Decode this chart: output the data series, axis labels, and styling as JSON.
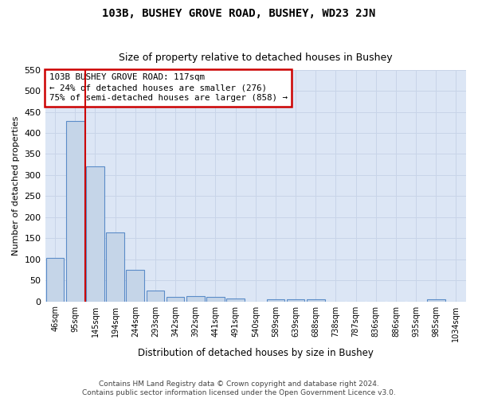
{
  "title": "103B, BUSHEY GROVE ROAD, BUSHEY, WD23 2JN",
  "subtitle": "Size of property relative to detached houses in Bushey",
  "xlabel": "Distribution of detached houses by size in Bushey",
  "ylabel": "Number of detached properties",
  "footer_line1": "Contains HM Land Registry data © Crown copyright and database right 2024.",
  "footer_line2": "Contains public sector information licensed under the Open Government Licence v3.0.",
  "bar_categories": [
    "46sqm",
    "95sqm",
    "145sqm",
    "194sqm",
    "244sqm",
    "293sqm",
    "342sqm",
    "392sqm",
    "441sqm",
    "491sqm",
    "540sqm",
    "589sqm",
    "639sqm",
    "688sqm",
    "738sqm",
    "787sqm",
    "836sqm",
    "886sqm",
    "935sqm",
    "985sqm",
    "1034sqm"
  ],
  "bar_values": [
    103,
    428,
    320,
    163,
    75,
    25,
    11,
    12,
    11,
    6,
    0,
    5,
    5,
    5,
    0,
    0,
    0,
    0,
    0,
    4,
    0
  ],
  "bar_color": "#c5d5e8",
  "bar_edge_color": "#5b8cc8",
  "grid_color": "#c8d4e8",
  "background_color": "#dce6f5",
  "property_label": "103B BUSHEY GROVE ROAD: 117sqm",
  "pct_smaller": 24,
  "count_smaller": 276,
  "pct_larger_semi": 75,
  "count_larger_semi": 858,
  "annotation_box_color": "#ffffff",
  "annotation_box_edge": "#cc0000",
  "vline_color": "#cc0000",
  "vline_x": 1.5,
  "ylim": [
    0,
    550
  ],
  "yticks": [
    0,
    50,
    100,
    150,
    200,
    250,
    300,
    350,
    400,
    450,
    500,
    550
  ]
}
